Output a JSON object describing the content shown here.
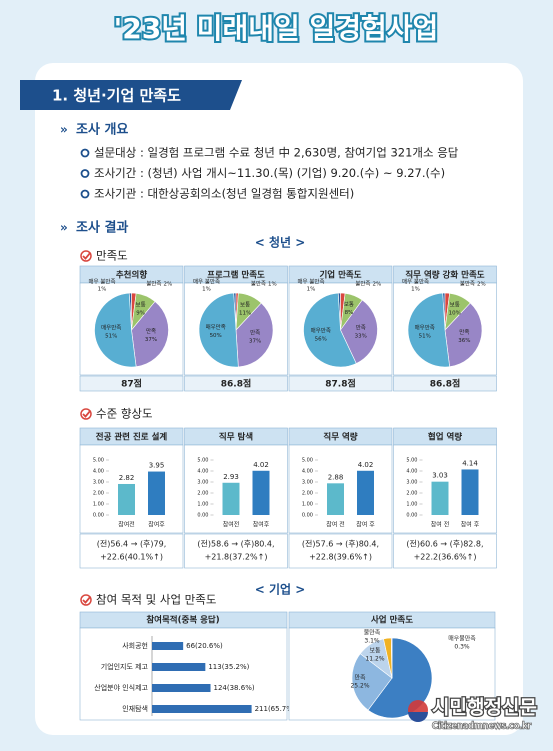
{
  "header": {
    "title": "'23년 미래내일 일경험사업"
  },
  "section_title": "1. 청년·기업 만족도",
  "overview": {
    "heading": "조사 개요",
    "items": [
      "설문대상 : 일경험 프로그램 수료 청년 中 2,630명, 참여기업 321개소 응답",
      "조사기간 : (청년) 사업 개시~11.30.(목)   (기업) 9.20.(수) ~ 9.27.(수)",
      "조사기관 : 대한상공회의소(청년 일경험 통합지원센터)"
    ]
  },
  "results": {
    "heading": "조사 결과",
    "youth": {
      "label": "< 청년 >",
      "satisfaction": {
        "heading": "만족도",
        "charts": [
          {
            "type": "pie",
            "title": "추천의향",
            "categories": [
              "매우 불만족",
              "불만족",
              "보통",
              "만족",
              "매우만족"
            ],
            "values": [
              1,
              2,
              9,
              37,
              51
            ],
            "value_labels": [
              "1%",
              "2%",
              "9%",
              "37%",
              "51%"
            ],
            "colors": [
              "#27589c",
              "#d9473f",
              "#9cc46b",
              "#9886c6",
              "#58aed2"
            ],
            "score": "87점"
          },
          {
            "type": "pie",
            "title": "프로그램 만족도",
            "categories": [
              "매우 불만족",
              "불만족",
              "보통",
              "만족",
              "매우만족"
            ],
            "values": [
              1,
              1,
              11,
              37,
              50
            ],
            "value_labels": [
              "1%",
              "1%",
              "11%",
              "37%",
              "50%"
            ],
            "colors": [
              "#27589c",
              "#d9473f",
              "#9cc46b",
              "#9886c6",
              "#58aed2"
            ],
            "score": "86.8점"
          },
          {
            "type": "pie",
            "title": "기업 만족도",
            "categories": [
              "매우 불만족",
              "불만족",
              "보통",
              "만족",
              "매우만족"
            ],
            "values": [
              1,
              2,
              8,
              33,
              56
            ],
            "value_labels": [
              "1%",
              "2%",
              "8%",
              "33%",
              "56%"
            ],
            "colors": [
              "#27589c",
              "#d9473f",
              "#9cc46b",
              "#9886c6",
              "#58aed2"
            ],
            "score": "87.8점"
          },
          {
            "type": "pie",
            "title": "직무 역량 강화 만족도",
            "categories": [
              "매우 불만족",
              "불만족",
              "보통",
              "만족",
              "매우만족"
            ],
            "values": [
              1,
              2,
              10,
              36,
              51
            ],
            "value_labels": [
              "1%",
              "2%",
              "10%",
              "36%",
              "51%"
            ],
            "colors": [
              "#27589c",
              "#d9473f",
              "#9cc46b",
              "#9886c6",
              "#58aed2"
            ],
            "score": "86.8점"
          }
        ]
      },
      "improvement": {
        "heading": "수준 향상도",
        "charts": [
          {
            "type": "bar",
            "title": "전공 관련 진로 설계",
            "categories": [
              "참여전",
              "참여후"
            ],
            "values": [
              2.82,
              3.95
            ],
            "colors": [
              "#5cb9cb",
              "#2f7dc0"
            ],
            "ylim": [
              0,
              5
            ],
            "yticks": [
              {
                "value": 0,
                "label": "0.00"
              },
              {
                "value": 1,
                "label": "1.00"
              },
              {
                "value": 2,
                "label": "2.00"
              },
              {
                "value": 3,
                "label": "3.00"
              },
              {
                "value": 4,
                "label": "4.00"
              },
              {
                "value": 5,
                "label": "5.00"
              }
            ],
            "note": [
              "(전)56.4 → (후)79,",
              "+22.6(40.1%↑)"
            ]
          },
          {
            "type": "bar",
            "title": "직무 탐색",
            "categories": [
              "참여전",
              "참여후"
            ],
            "values": [
              2.93,
              4.02
            ],
            "colors": [
              "#5cb9cb",
              "#2f7dc0"
            ],
            "ylim": [
              0,
              5
            ],
            "yticks": [
              {
                "value": 0,
                "label": "0.00"
              },
              {
                "value": 1,
                "label": "1.00"
              },
              {
                "value": 2,
                "label": "2.00"
              },
              {
                "value": 3,
                "label": "3.00"
              },
              {
                "value": 4,
                "label": "4.00"
              },
              {
                "value": 5,
                "label": "5.00"
              }
            ],
            "note": [
              "(전)58.6 → (후)80.4,",
              "+21.8(37.2%↑)"
            ]
          },
          {
            "type": "bar",
            "title": "직무 역량",
            "categories": [
              "참여 전",
              "참여 후"
            ],
            "values": [
              2.88,
              4.02
            ],
            "colors": [
              "#5cb9cb",
              "#2f7dc0"
            ],
            "ylim": [
              0,
              5
            ],
            "yticks": [
              {
                "value": 0,
                "label": "0.00"
              },
              {
                "value": 1,
                "label": "1.00"
              },
              {
                "value": 2,
                "label": "2.00"
              },
              {
                "value": 3,
                "label": "3.00"
              },
              {
                "value": 4,
                "label": "4.00"
              },
              {
                "value": 5,
                "label": "5.00"
              }
            ],
            "note": [
              "(전)57.6 → (후)80.4,",
              "+22.8(39.6%↑)"
            ]
          },
          {
            "type": "bar",
            "title": "협업 역량",
            "categories": [
              "참여 전",
              "참여 후"
            ],
            "values": [
              3.03,
              4.14
            ],
            "colors": [
              "#5cb9cb",
              "#2f7dc0"
            ],
            "ylim": [
              0,
              5
            ],
            "yticks": [
              {
                "value": 0,
                "label": "0.00"
              },
              {
                "value": 1,
                "label": "1.00"
              },
              {
                "value": 2,
                "label": "2.00"
              },
              {
                "value": 3,
                "label": "3.00"
              },
              {
                "value": 4,
                "label": "4.00"
              },
              {
                "value": 5,
                "label": "5.00"
              }
            ],
            "note": [
              "(전)60.6 → (후)82.8,",
              "+22.2(36.6%↑)"
            ]
          }
        ]
      }
    },
    "company": {
      "label": "< 기업 >",
      "heading": "참여 목적 및 사업 만족도",
      "purpose": {
        "type": "hbar",
        "title": "참여목적(중복 응답)",
        "categories": [
          "사회공헌",
          "기업인지도 제고",
          "산업분야 인식제고",
          "인재탐색"
        ],
        "values": [
          66,
          113,
          124,
          211
        ],
        "value_labels": [
          "66(20.6%)",
          "113(35.2%)",
          "124(38.6%)",
          "211(65.7%)"
        ],
        "color": "#2f6db3",
        "xlim": [
          0,
          250
        ]
      },
      "satisfaction": {
        "type": "pie",
        "title": "사업 만족도",
        "categories": [
          null,
          "만족",
          "보통",
          "불만족",
          "매우불만족"
        ],
        "values": [
          60.2,
          25.2,
          11.2,
          3.1,
          0.3
        ],
        "value_labels": [
          null,
          "25.2%",
          "11.2%",
          "3.1%",
          "0.3%"
        ],
        "colors": [
          "#3c7fc3",
          "#8db7e0",
          "#bcd4ec",
          "#f0b223",
          "#e0602f"
        ]
      }
    }
  },
  "watermark": {
    "name": "시민행정신문",
    "url": "Citizenadmnews.co.kr"
  }
}
